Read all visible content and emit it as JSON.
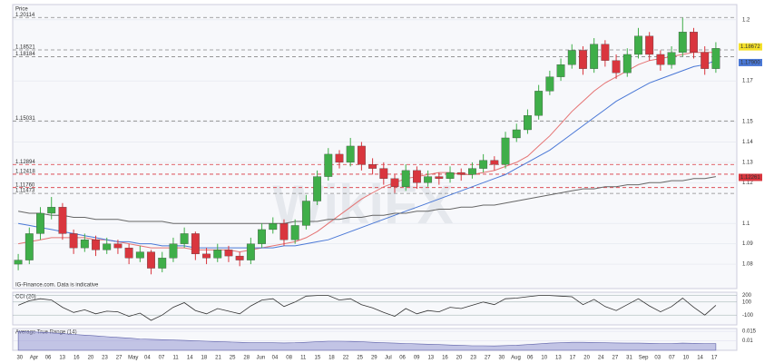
{
  "chart_data": {
    "type": "candlestick",
    "title": "Price",
    "source_note": "IG-Finance.com. Data is indicative",
    "watermark": "WikiFX",
    "up_color": "#3fae49",
    "down_color": "#d9363e",
    "ylim": [
      1.068,
      1.2075
    ],
    "yticks": [
      1.2,
      1.17,
      1.15,
      1.14,
      1.13,
      1.12,
      1.1,
      1.09,
      1.08
    ],
    "levels": [
      {
        "value": 1.20114,
        "label": "1.20114",
        "color": "#888888"
      },
      {
        "value": 1.18521,
        "label": "1.18521",
        "color": "#888888"
      },
      {
        "value": 1.18184,
        "label": "1.18184",
        "color": "#888888"
      },
      {
        "value": 1.15031,
        "label": "1.15031",
        "color": "#888888"
      },
      {
        "value": 1.12894,
        "label": "1.12894",
        "color": "#d9363e"
      },
      {
        "value": 1.12418,
        "label": "1.12418",
        "color": "#d9363e"
      },
      {
        "value": {
          "value": 1.1176,
          "label": "1.11760"
        },
        "color": "#d9363e"
      },
      {
        "value": 1.11473,
        "label": "1.11473",
        "color": "#888888"
      }
    ],
    "price_markers": [
      {
        "value": 1.18672,
        "label": "1.18672",
        "color": "#f5e12a"
      },
      {
        "value": {
          "value": 1.179,
          "label": "1.17900"
        },
        "color": "#4a78d6"
      },
      {
        "value": 1.12261,
        "label": "1.12261",
        "color": "#d9363e"
      }
    ],
    "x_labels": [
      "30",
      "Apr",
      "06",
      "13",
      "16",
      "20",
      "23",
      "27",
      "May",
      "04",
      "07",
      "11",
      "14",
      "18",
      "21",
      "25",
      "28",
      "Jun",
      "04",
      "08",
      "11",
      "15",
      "18",
      "22",
      "25",
      "29",
      "Jul",
      "06",
      "09",
      "13",
      "16",
      "20",
      "23",
      "27",
      "30",
      "Aug",
      "06",
      "10",
      "13",
      "17",
      "20",
      "24",
      "27",
      "31",
      "Sep",
      "03",
      "07",
      "10",
      "14",
      "17"
    ],
    "candles": [
      [
        1.08,
        1.085,
        1.077,
        1.082
      ],
      [
        1.082,
        1.098,
        1.08,
        1.095
      ],
      [
        1.095,
        1.108,
        1.092,
        1.105
      ],
      [
        1.105,
        1.113,
        1.102,
        1.108
      ],
      [
        1.108,
        1.11,
        1.092,
        1.095
      ],
      [
        1.095,
        1.097,
        1.085,
        1.088
      ],
      [
        1.088,
        1.095,
        1.086,
        1.092
      ],
      [
        1.092,
        1.094,
        1.084,
        1.087
      ],
      [
        1.087,
        1.093,
        1.085,
        1.09
      ],
      [
        1.09,
        1.092,
        1.085,
        1.088
      ],
      [
        1.088,
        1.09,
        1.08,
        1.083
      ],
      [
        1.083,
        1.089,
        1.081,
        1.086
      ],
      [
        1.086,
        1.087,
        1.075,
        1.078
      ],
      [
        1.078,
        1.086,
        1.076,
        1.083
      ],
      [
        1.083,
        1.093,
        1.081,
        1.09
      ],
      [
        1.09,
        1.098,
        1.088,
        1.095
      ],
      [
        1.095,
        1.096,
        1.082,
        1.085
      ],
      [
        1.085,
        1.088,
        1.08,
        1.083
      ],
      [
        1.083,
        1.09,
        1.081,
        1.087
      ],
      [
        1.087,
        1.089,
        1.081,
        1.084
      ],
      [
        1.084,
        1.086,
        1.079,
        1.082
      ],
      [
        1.082,
        1.093,
        1.08,
        1.09
      ],
      [
        1.09,
        1.1,
        1.088,
        1.097
      ],
      [
        1.097,
        1.103,
        1.095,
        1.1
      ],
      [
        1.1,
        1.102,
        1.089,
        1.092
      ],
      [
        1.092,
        1.102,
        1.09,
        1.099
      ],
      [
        1.099,
        1.114,
        1.097,
        1.111
      ],
      [
        1.111,
        1.126,
        1.109,
        1.123
      ],
      [
        1.123,
        1.137,
        1.121,
        1.134
      ],
      [
        1.134,
        1.136,
        1.127,
        1.13
      ],
      [
        1.13,
        1.142,
        1.128,
        1.138
      ],
      [
        1.138,
        1.14,
        1.126,
        1.129
      ],
      [
        1.129,
        1.132,
        1.124,
        1.127
      ],
      [
        1.127,
        1.13,
        1.119,
        1.122
      ],
      [
        1.122,
        1.124,
        1.115,
        1.118
      ],
      [
        1.118,
        1.129,
        1.116,
        1.126
      ],
      [
        1.126,
        1.128,
        1.117,
        1.12
      ],
      [
        1.12,
        1.126,
        1.118,
        1.123
      ],
      [
        1.123,
        1.125,
        1.119,
        1.122
      ],
      [
        1.122,
        1.128,
        1.12,
        1.125
      ],
      [
        1.125,
        1.127,
        1.121,
        1.124
      ],
      [
        1.124,
        1.13,
        1.122,
        1.127
      ],
      [
        1.127,
        1.134,
        1.125,
        1.131
      ],
      [
        1.131,
        1.133,
        1.126,
        1.129
      ],
      [
        1.129,
        1.145,
        1.127,
        1.142
      ],
      [
        1.142,
        1.149,
        1.14,
        1.146
      ],
      [
        1.146,
        1.156,
        1.144,
        1.153
      ],
      [
        1.153,
        1.168,
        1.151,
        1.165
      ],
      [
        1.165,
        1.175,
        1.163,
        1.172
      ],
      [
        1.172,
        1.181,
        1.17,
        1.178
      ],
      [
        1.178,
        1.188,
        1.176,
        1.185
      ],
      [
        1.185,
        1.187,
        1.173,
        1.176
      ],
      [
        1.176,
        1.191,
        1.174,
        1.188
      ],
      [
        1.188,
        1.19,
        1.177,
        1.18
      ],
      [
        1.18,
        1.183,
        1.171,
        1.174
      ],
      [
        1.174,
        1.186,
        1.172,
        1.183
      ],
      [
        1.183,
        1.196,
        1.181,
        1.192
      ],
      [
        1.192,
        1.194,
        1.18,
        1.183
      ],
      [
        1.183,
        1.185,
        1.175,
        1.178
      ],
      [
        1.178,
        1.187,
        1.176,
        1.184
      ],
      [
        1.184,
        1.201,
        1.182,
        1.194
      ],
      [
        1.194,
        1.196,
        1.181,
        1.184
      ],
      [
        1.184,
        1.187,
        1.173,
        1.176
      ],
      [
        1.176,
        1.189,
        1.174,
        1.186
      ]
    ],
    "moving_averages": [
      {
        "color": "#e57373",
        "values": [
          1.09,
          1.091,
          1.092,
          1.093,
          1.093,
          1.093,
          1.093,
          1.092,
          1.092,
          1.091,
          1.09,
          1.089,
          1.088,
          1.088,
          1.088,
          1.088,
          1.087,
          1.087,
          1.087,
          1.087,
          1.086,
          1.087,
          1.088,
          1.089,
          1.09,
          1.091,
          1.093,
          1.096,
          1.1,
          1.104,
          1.108,
          1.112,
          1.115,
          1.118,
          1.12,
          1.122,
          1.123,
          1.124,
          1.125,
          1.125,
          1.124,
          1.124,
          1.125,
          1.126,
          1.128,
          1.13,
          1.133,
          1.138,
          1.143,
          1.149,
          1.155,
          1.16,
          1.165,
          1.169,
          1.172,
          1.175,
          1.178,
          1.18,
          1.181,
          1.182,
          1.183,
          1.184,
          1.184,
          1.184
        ]
      },
      {
        "color": "#4a78d6",
        "values": [
          1.1,
          1.099,
          1.098,
          1.097,
          1.096,
          1.095,
          1.094,
          1.093,
          1.092,
          1.091,
          1.091,
          1.09,
          1.09,
          1.089,
          1.089,
          1.089,
          1.088,
          1.088,
          1.088,
          1.088,
          1.088,
          1.088,
          1.088,
          1.088,
          1.089,
          1.089,
          1.09,
          1.091,
          1.092,
          1.094,
          1.096,
          1.098,
          1.1,
          1.102,
          1.104,
          1.106,
          1.108,
          1.11,
          1.112,
          1.114,
          1.116,
          1.118,
          1.12,
          1.122,
          1.124,
          1.127,
          1.13,
          1.133,
          1.136,
          1.14,
          1.144,
          1.148,
          1.152,
          1.156,
          1.16,
          1.163,
          1.166,
          1.169,
          1.171,
          1.173,
          1.175,
          1.177,
          1.178,
          1.18
        ]
      },
      {
        "color": "#666666",
        "values": [
          1.106,
          1.105,
          1.105,
          1.104,
          1.104,
          1.103,
          1.103,
          1.102,
          1.102,
          1.102,
          1.101,
          1.101,
          1.101,
          1.101,
          1.1,
          1.1,
          1.1,
          1.1,
          1.1,
          1.1,
          1.1,
          1.1,
          1.1,
          1.1,
          1.1,
          1.101,
          1.101,
          1.101,
          1.102,
          1.102,
          1.103,
          1.103,
          1.104,
          1.104,
          1.105,
          1.105,
          1.106,
          1.106,
          1.107,
          1.107,
          1.108,
          1.108,
          1.109,
          1.109,
          1.11,
          1.111,
          1.112,
          1.113,
          1.114,
          1.115,
          1.116,
          1.117,
          1.117,
          1.118,
          1.118,
          1.119,
          1.119,
          1.12,
          1.12,
          1.121,
          1.121,
          1.122,
          1.122,
          1.123
        ]
      }
    ],
    "cci": {
      "label": "CCI (20)",
      "color": "#333333",
      "ylim": [
        -250,
        250
      ],
      "yticks": [
        200,
        100,
        -100
      ],
      "values": [
        50,
        120,
        150,
        130,
        20,
        -60,
        -20,
        -80,
        -40,
        -50,
        -120,
        -70,
        -180,
        -100,
        20,
        90,
        -30,
        -80,
        0,
        -40,
        -80,
        40,
        130,
        150,
        30,
        100,
        190,
        200,
        200,
        130,
        150,
        60,
        10,
        -60,
        -120,
        0,
        -80,
        -30,
        -50,
        20,
        0,
        50,
        100,
        60,
        150,
        160,
        180,
        200,
        200,
        190,
        180,
        60,
        140,
        30,
        -30,
        60,
        150,
        40,
        -50,
        30,
        160,
        20,
        -100,
        50
      ]
    },
    "atr": {
      "label": "Average True Range (14)",
      "color": "#8d8fcf",
      "ylim": [
        0.005,
        0.0165
      ],
      "yticks": [
        0.015,
        0.01
      ],
      "values": [
        0.015,
        0.0148,
        0.0145,
        0.0142,
        0.0138,
        0.0134,
        0.013,
        0.0126,
        0.0122,
        0.0118,
        0.0114,
        0.011,
        0.0108,
        0.0106,
        0.0104,
        0.0102,
        0.01,
        0.0098,
        0.0096,
        0.0094,
        0.0092,
        0.009,
        0.009,
        0.009,
        0.0089,
        0.009,
        0.0092,
        0.0095,
        0.0098,
        0.0098,
        0.0097,
        0.0095,
        0.0092,
        0.009,
        0.0088,
        0.0086,
        0.0084,
        0.0082,
        0.008,
        0.0078,
        0.0076,
        0.0074,
        0.0074,
        0.0073,
        0.0075,
        0.0077,
        0.008,
        0.0084,
        0.0088,
        0.009,
        0.0092,
        0.0092,
        0.0091,
        0.009,
        0.0089,
        0.0088,
        0.0088,
        0.0087,
        0.0086,
        0.0086,
        0.0088,
        0.0087,
        0.0086,
        0.0085
      ]
    }
  }
}
